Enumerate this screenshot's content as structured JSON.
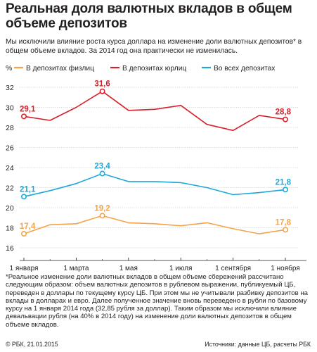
{
  "header": {
    "title": "Реальная доля валютных вкладов в общем объеме депозитов",
    "subtitle": "Мы исключили влияние роста курса доллара на изменение доли валютных депозитов* в общем объеме вкладов. За 2014 год она практически не изменилась."
  },
  "chart_data": {
    "type": "line",
    "ylabel": "%",
    "ylim": [
      16,
      32
    ],
    "yticks": [
      16,
      18,
      20,
      22,
      24,
      26,
      28,
      30,
      32
    ],
    "x_tick_labels": [
      "1 января",
      "1 марта",
      "1 мая",
      "1 июля",
      "1 сентября",
      "1 ноября"
    ],
    "x_tick_index": [
      0,
      2,
      4,
      6,
      8,
      10
    ],
    "x_range": [
      0,
      10
    ],
    "grid": "horizontal",
    "legend": "top",
    "series": [
      {
        "name": "В депозитах физлиц",
        "color": "#f5a34a",
        "values": [
          17.4,
          18.3,
          18.4,
          19.2,
          18.5,
          18.4,
          18.2,
          18.5,
          17.9,
          17.4,
          17.8
        ],
        "labels": [
          {
            "index": 0,
            "text": "17,4"
          },
          {
            "index": 3,
            "text": "19,2"
          },
          {
            "index": 10,
            "text": "17,8"
          }
        ]
      },
      {
        "name": "В депозитах юрлиц",
        "color": "#d6202a",
        "values": [
          29.1,
          28.7,
          30.0,
          31.6,
          29.7,
          29.8,
          30.2,
          28.3,
          27.7,
          29.2,
          28.8
        ],
        "labels": [
          {
            "index": 0,
            "text": "29,1"
          },
          {
            "index": 3,
            "text": "31,6"
          },
          {
            "index": 10,
            "text": "28,8"
          }
        ]
      },
      {
        "name": "Во всех депозитах",
        "color": "#1ea8d8",
        "values": [
          21.1,
          21.7,
          22.4,
          23.4,
          22.6,
          22.6,
          22.5,
          22.0,
          21.3,
          21.5,
          21.8
        ],
        "labels": [
          {
            "index": 0,
            "text": "21,1"
          },
          {
            "index": 3,
            "text": "23,4"
          },
          {
            "index": 10,
            "text": "21,8"
          }
        ]
      }
    ]
  },
  "note": "*Реальное изменение доли валютных вкладов в общем объеме сбережений рассчитано следующим образом: объем валютных депозитов в рублевом выражении, публикуемый ЦБ, переведен в доллары по текущему курсу ЦБ. При этом мы не учитывали разбивку депозитов на вклады в долларах и евро. Далее полученное значение вновь переведено в рубли по базовому курсу на 1 января 2014 года (32,85 рубля за доллар). Таким образом мы исключили влияние девальвации рубля (на 40% в 2014 году) на изменение доли валютных депозитов в общем объеме вкладов.",
  "footer": {
    "copyright": "© РБК, 21.01.2015",
    "source": "Источники: данные ЦБ, расчеты РБК"
  }
}
